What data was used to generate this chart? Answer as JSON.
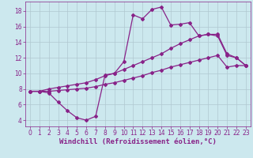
{
  "bg_color": "#cce8ee",
  "grid_color": "#b0c8d0",
  "line_color": "#882288",
  "marker": "D",
  "markersize": 2.0,
  "linewidth": 0.9,
  "xlabel": "Windchill (Refroidissement éolien,°C)",
  "xlabel_fontsize": 6.5,
  "tick_fontsize": 5.5,
  "ylim": [
    3.2,
    19.2
  ],
  "xlim": [
    -0.5,
    23.5
  ],
  "yticks": [
    4,
    6,
    8,
    10,
    12,
    14,
    16,
    18
  ],
  "xticks": [
    0,
    1,
    2,
    3,
    4,
    5,
    6,
    7,
    8,
    9,
    10,
    11,
    12,
    13,
    14,
    15,
    16,
    17,
    18,
    19,
    20,
    21,
    22,
    23
  ],
  "line1_x": [
    0,
    1,
    2,
    3,
    4,
    5,
    6,
    7,
    8,
    9,
    10,
    11,
    12,
    13,
    14,
    15,
    16,
    17,
    18,
    19,
    20,
    21,
    22,
    23
  ],
  "line1_y": [
    7.7,
    7.7,
    7.5,
    6.3,
    5.2,
    4.3,
    4.0,
    4.5,
    9.8,
    10.0,
    11.5,
    17.5,
    17.0,
    18.2,
    18.5,
    16.2,
    16.3,
    16.5,
    14.8,
    15.0,
    15.0,
    12.5,
    12.0,
    11.0
  ],
  "line2_x": [
    0,
    1,
    2,
    3,
    4,
    5,
    6,
    7,
    8,
    9,
    10,
    11,
    12,
    13,
    14,
    15,
    16,
    17,
    18,
    19,
    20,
    21,
    22,
    23
  ],
  "line2_y": [
    7.7,
    7.7,
    8.0,
    8.2,
    8.4,
    8.6,
    8.8,
    9.2,
    9.7,
    10.0,
    10.5,
    11.0,
    11.5,
    12.0,
    12.5,
    13.2,
    13.8,
    14.3,
    14.8,
    15.0,
    14.8,
    12.3,
    12.0,
    11.0
  ],
  "line3_x": [
    0,
    1,
    2,
    3,
    4,
    5,
    6,
    7,
    8,
    9,
    10,
    11,
    12,
    13,
    14,
    15,
    16,
    17,
    18,
    19,
    20,
    21,
    22,
    23
  ],
  "line3_y": [
    7.7,
    7.7,
    7.7,
    7.8,
    7.9,
    8.0,
    8.1,
    8.3,
    8.6,
    8.8,
    9.1,
    9.4,
    9.7,
    10.1,
    10.4,
    10.8,
    11.1,
    11.4,
    11.7,
    12.0,
    12.3,
    10.8,
    11.0,
    11.0
  ]
}
